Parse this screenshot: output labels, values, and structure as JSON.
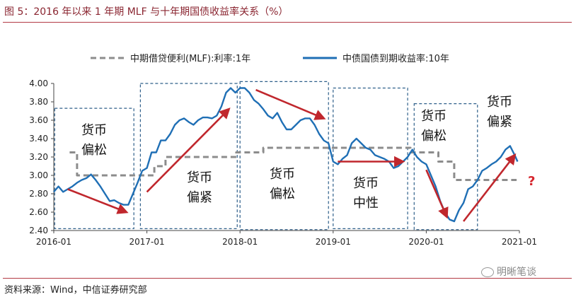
{
  "figure": {
    "title": "图 5：2016 年以来 1 年期 MLF 与十年期国债收益率关系（%）",
    "source": "资料来源：Wind，中信证券研究部",
    "watermark": "明晰笔谈",
    "watermark_icon": "wechat-icon"
  },
  "colors": {
    "accent": "#b33a45",
    "title": "#8a2530",
    "yield_line": "#1f6fb5",
    "mlf_line": "#8c8c8c",
    "box_border": "#2e5f8a",
    "arrow": "#c0272d",
    "question": "#d6262e"
  },
  "chart_data": {
    "type": "line",
    "title": "2016 年以来 1 年期 MLF 与十年期国债收益率关系（%）",
    "xlabel": "",
    "ylabel": "",
    "ylim": [
      2.4,
      4.0
    ],
    "yticks": [
      "4.00",
      "3.80",
      "3.60",
      "3.40",
      "3.20",
      "3.00",
      "2.80",
      "2.60",
      "2.40"
    ],
    "xlim": [
      2016.0,
      2021.0
    ],
    "xticks": [
      {
        "label": "2016-01",
        "x": 2016.0
      },
      {
        "label": "2017-01",
        "x": 2017.0
      },
      {
        "label": "2018-01",
        "x": 2018.0
      },
      {
        "label": "2019-01",
        "x": 2019.0
      },
      {
        "label": "2020-01",
        "x": 2020.0
      },
      {
        "label": "2021-01",
        "x": 2021.0
      }
    ],
    "grid": false,
    "legend_position": "top",
    "series": [
      {
        "name": "中期借贷便利(MLF):利率:1年",
        "style": "dashed",
        "points": [
          [
            2016.17,
            3.25
          ],
          [
            2016.25,
            3.25
          ],
          [
            2016.25,
            3.0
          ],
          [
            2017.08,
            3.0
          ],
          [
            2017.08,
            3.1
          ],
          [
            2017.2,
            3.1
          ],
          [
            2017.2,
            3.2
          ],
          [
            2017.96,
            3.2
          ],
          [
            2017.96,
            3.25
          ],
          [
            2018.25,
            3.25
          ],
          [
            2018.25,
            3.3
          ],
          [
            2019.83,
            3.3
          ],
          [
            2019.83,
            3.25
          ],
          [
            2020.13,
            3.25
          ],
          [
            2020.13,
            3.15
          ],
          [
            2020.3,
            3.15
          ],
          [
            2020.3,
            2.95
          ],
          [
            2020.97,
            2.95
          ]
        ]
      },
      {
        "name": "中债国债到期收益率:10年",
        "style": "solid",
        "points": [
          [
            2016.0,
            2.82
          ],
          [
            2016.05,
            2.88
          ],
          [
            2016.1,
            2.82
          ],
          [
            2016.15,
            2.85
          ],
          [
            2016.2,
            2.88
          ],
          [
            2016.25,
            2.92
          ],
          [
            2016.3,
            2.95
          ],
          [
            2016.35,
            2.97
          ],
          [
            2016.4,
            3.01
          ],
          [
            2016.45,
            2.95
          ],
          [
            2016.5,
            2.88
          ],
          [
            2016.55,
            2.8
          ],
          [
            2016.6,
            2.72
          ],
          [
            2016.65,
            2.73
          ],
          [
            2016.7,
            2.7
          ],
          [
            2016.75,
            2.68
          ],
          [
            2016.8,
            2.68
          ],
          [
            2016.85,
            2.8
          ],
          [
            2016.9,
            2.92
          ],
          [
            2016.95,
            3.05
          ],
          [
            2017.0,
            3.08
          ],
          [
            2017.05,
            3.25
          ],
          [
            2017.1,
            3.25
          ],
          [
            2017.15,
            3.38
          ],
          [
            2017.2,
            3.38
          ],
          [
            2017.25,
            3.45
          ],
          [
            2017.3,
            3.55
          ],
          [
            2017.35,
            3.6
          ],
          [
            2017.4,
            3.62
          ],
          [
            2017.45,
            3.58
          ],
          [
            2017.5,
            3.55
          ],
          [
            2017.55,
            3.6
          ],
          [
            2017.6,
            3.63
          ],
          [
            2017.65,
            3.63
          ],
          [
            2017.7,
            3.62
          ],
          [
            2017.75,
            3.65
          ],
          [
            2017.8,
            3.75
          ],
          [
            2017.85,
            3.9
          ],
          [
            2017.9,
            3.95
          ],
          [
            2017.95,
            3.9
          ],
          [
            2018.0,
            3.95
          ],
          [
            2018.05,
            3.95
          ],
          [
            2018.1,
            3.9
          ],
          [
            2018.15,
            3.82
          ],
          [
            2018.2,
            3.78
          ],
          [
            2018.25,
            3.72
          ],
          [
            2018.3,
            3.65
          ],
          [
            2018.35,
            3.62
          ],
          [
            2018.4,
            3.68
          ],
          [
            2018.45,
            3.58
          ],
          [
            2018.5,
            3.5
          ],
          [
            2018.55,
            3.5
          ],
          [
            2018.6,
            3.55
          ],
          [
            2018.65,
            3.6
          ],
          [
            2018.7,
            3.62
          ],
          [
            2018.75,
            3.62
          ],
          [
            2018.8,
            3.55
          ],
          [
            2018.85,
            3.45
          ],
          [
            2018.9,
            3.38
          ],
          [
            2018.95,
            3.35
          ],
          [
            2019.0,
            3.15
          ],
          [
            2019.05,
            3.12
          ],
          [
            2019.1,
            3.18
          ],
          [
            2019.15,
            3.22
          ],
          [
            2019.2,
            3.35
          ],
          [
            2019.25,
            3.4
          ],
          [
            2019.3,
            3.35
          ],
          [
            2019.35,
            3.3
          ],
          [
            2019.4,
            3.28
          ],
          [
            2019.45,
            3.22
          ],
          [
            2019.5,
            3.2
          ],
          [
            2019.55,
            3.18
          ],
          [
            2019.6,
            3.15
          ],
          [
            2019.65,
            3.08
          ],
          [
            2019.7,
            3.1
          ],
          [
            2019.75,
            3.15
          ],
          [
            2019.8,
            3.2
          ],
          [
            2019.85,
            3.28
          ],
          [
            2019.9,
            3.2
          ],
          [
            2019.95,
            3.15
          ],
          [
            2020.0,
            3.12
          ],
          [
            2020.05,
            3.0
          ],
          [
            2020.1,
            2.88
          ],
          [
            2020.15,
            2.72
          ],
          [
            2020.2,
            2.6
          ],
          [
            2020.25,
            2.52
          ],
          [
            2020.3,
            2.5
          ],
          [
            2020.35,
            2.62
          ],
          [
            2020.4,
            2.7
          ],
          [
            2020.45,
            2.85
          ],
          [
            2020.5,
            2.88
          ],
          [
            2020.55,
            2.95
          ],
          [
            2020.6,
            3.05
          ],
          [
            2020.65,
            3.08
          ],
          [
            2020.7,
            3.12
          ],
          [
            2020.75,
            3.15
          ],
          [
            2020.8,
            3.2
          ],
          [
            2020.85,
            3.28
          ],
          [
            2020.9,
            3.32
          ],
          [
            2020.95,
            3.22
          ],
          [
            2020.98,
            3.15
          ]
        ]
      }
    ],
    "annotations": [
      {
        "label": "货币偏松",
        "lines": [
          "货币",
          "偏松"
        ],
        "x0": 2016.01,
        "x1": 2016.86,
        "y0": 2.42,
        "y1": 3.73
      },
      {
        "label": "货币偏紧",
        "lines": [
          "货币",
          "偏紧"
        ],
        "x0": 2016.93,
        "x1": 2017.97,
        "y0": 2.42,
        "y1": 4.0
      },
      {
        "label": "货币偏松",
        "lines": [
          "货币",
          "偏松"
        ],
        "x0": 2018.0,
        "x1": 2018.95,
        "y0": 2.41,
        "y1": 4.02
      },
      {
        "label": "货币中性",
        "lines": [
          "货币",
          "中性"
        ],
        "x0": 2019.0,
        "x1": 2019.8,
        "y0": 2.42,
        "y1": 3.95
      },
      {
        "label": "货币偏松",
        "lines": [
          "货币",
          "偏松"
        ],
        "x0": 2019.87,
        "x1": 2020.55,
        "y0": 2.41,
        "y1": 3.78
      },
      {
        "label": "货币偏紧",
        "lines": [
          "货币",
          "偏紧"
        ],
        "x0": null,
        "x1": null,
        "y0": null,
        "y1": null
      }
    ],
    "arrows": [
      {
        "from": [
          2016.15,
          2.85
        ],
        "to": [
          2016.78,
          2.6
        ]
      },
      {
        "from": [
          2017.0,
          2.82
        ],
        "to": [
          2017.88,
          3.72
        ]
      },
      {
        "from": [
          2018.17,
          3.93
        ],
        "to": [
          2018.9,
          3.62
        ]
      },
      {
        "from": [
          2019.05,
          3.15
        ],
        "to": [
          2019.75,
          3.15
        ]
      },
      {
        "from": [
          2020.0,
          3.06
        ],
        "to": [
          2020.22,
          2.55
        ]
      },
      {
        "from": [
          2020.4,
          2.5
        ],
        "to": [
          2020.95,
          3.22
        ]
      }
    ],
    "question_mark": "?"
  }
}
